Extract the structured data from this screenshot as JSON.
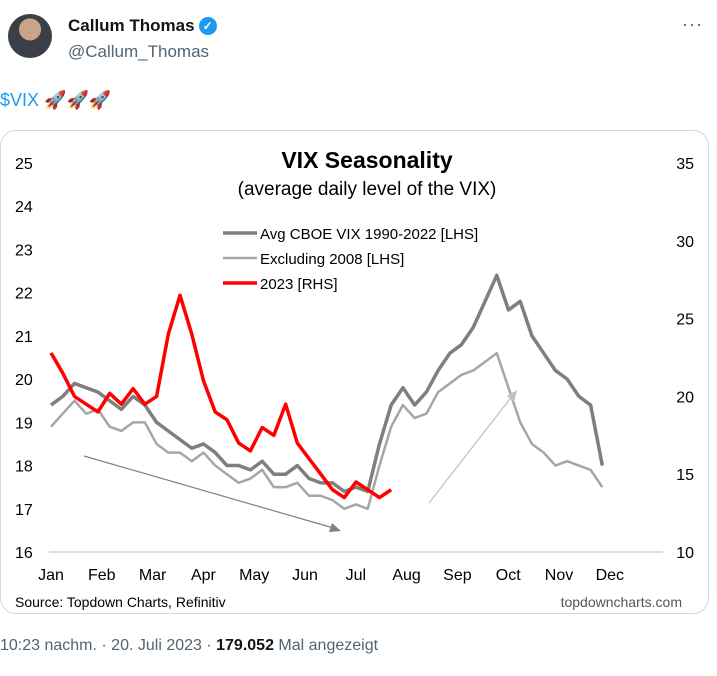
{
  "tweet": {
    "name": "Callum Thomas",
    "handle": "@Callum_Thomas",
    "cashtag": "$VIX",
    "emoji": "🚀🚀🚀",
    "time": "10:23 nachm.",
    "date": "20. Juli 2023",
    "views": "179.052",
    "views_label": "Mal angezeigt",
    "more": "···",
    "verified": "✓"
  },
  "chart_data": {
    "type": "line",
    "title": "VIX Seasonality",
    "subtitle": "(average daily level of the VIX)",
    "source": "Source: Topdown Charts, Refinitiv",
    "watermark": "topdowncharts.com",
    "x_ticks": [
      "Jan",
      "Feb",
      "Mar",
      "Apr",
      "May",
      "Jun",
      "Jul",
      "Aug",
      "Sep",
      "Oct",
      "Nov",
      "Dec"
    ],
    "y_left": {
      "ticks": [
        "16",
        "17",
        "18",
        "19",
        "20",
        "21",
        "22",
        "23",
        "24",
        "25"
      ],
      "range": [
        16,
        25
      ]
    },
    "y_right": {
      "ticks": [
        "10",
        "15",
        "20",
        "25",
        "30",
        "35"
      ],
      "range": [
        10,
        35
      ]
    },
    "x_unit": "week of year",
    "series": [
      {
        "name": "Avg CBOE VIX 1990-2022 [LHS]",
        "axis": "left",
        "color": "#7f7f7f",
        "width": 3.5,
        "values": [
          19.4,
          19.6,
          19.9,
          19.8,
          19.7,
          19.5,
          19.3,
          19.6,
          19.4,
          19.0,
          18.8,
          18.6,
          18.4,
          18.5,
          18.3,
          18.0,
          18.0,
          17.9,
          18.1,
          17.8,
          17.8,
          18.0,
          17.7,
          17.6,
          17.6,
          17.4,
          17.5,
          17.4,
          18.5,
          19.4,
          19.8,
          19.4,
          19.7,
          20.2,
          20.6,
          20.8,
          21.2,
          21.8,
          22.4,
          21.6,
          21.8,
          21.0,
          20.6,
          20.2,
          20.0,
          19.6,
          19.4,
          18.0
        ]
      },
      {
        "name": "Excluding 2008 [LHS]",
        "axis": "left",
        "color": "#a6a6a6",
        "width": 2.5,
        "values": [
          18.9,
          19.2,
          19.5,
          19.2,
          19.3,
          18.9,
          18.8,
          19.0,
          19.0,
          18.5,
          18.3,
          18.3,
          18.1,
          18.3,
          18.0,
          17.8,
          17.6,
          17.7,
          17.9,
          17.5,
          17.5,
          17.6,
          17.3,
          17.3,
          17.2,
          17.0,
          17.1,
          17.0,
          18.0,
          18.9,
          19.4,
          19.1,
          19.2,
          19.7,
          19.9,
          20.1,
          20.2,
          20.4,
          20.6,
          19.8,
          19.0,
          18.5,
          18.3,
          18.0,
          18.1,
          18.0,
          17.9,
          17.5
        ]
      },
      {
        "name": "2023 [RHS]",
        "axis": "right",
        "color": "#ff0000",
        "width": 3.5,
        "values": [
          22.8,
          21.5,
          20.0,
          19.5,
          19.0,
          20.2,
          19.5,
          20.5,
          19.5,
          20.0,
          24.0,
          26.5,
          24.0,
          21.0,
          19.0,
          18.5,
          17.0,
          16.5,
          18.0,
          17.5,
          19.5,
          17.0,
          16.0,
          15.0,
          14.0,
          13.5,
          14.5,
          14.0,
          13.5,
          14.0
        ]
      }
    ]
  }
}
